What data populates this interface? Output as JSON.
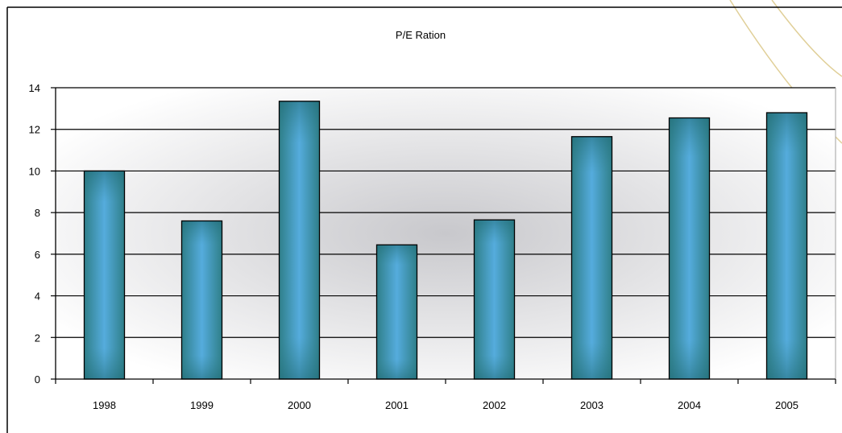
{
  "chart_data": {
    "type": "bar",
    "title": "P/E Ration",
    "xlabel": "",
    "ylabel": "",
    "categories": [
      "1998",
      "1999",
      "2000",
      "2001",
      "2002",
      "2003",
      "2004",
      "2005"
    ],
    "values": [
      10.0,
      7.6,
      13.35,
      6.45,
      7.65,
      11.65,
      12.55,
      12.8
    ],
    "ylim": [
      0,
      14
    ],
    "yticks": [
      0,
      2,
      4,
      6,
      8,
      10,
      12,
      14
    ],
    "grid": true,
    "legend": "none",
    "colors": {
      "bar_edge": "#2f7f89",
      "bar_center": "#55acdd",
      "bar_outline": "#000000",
      "plot_background_center": "#c8c8cc",
      "plot_background_edge": "#ffffff",
      "gridline": "#000000",
      "decorative_arc": "#e0cf98"
    }
  }
}
